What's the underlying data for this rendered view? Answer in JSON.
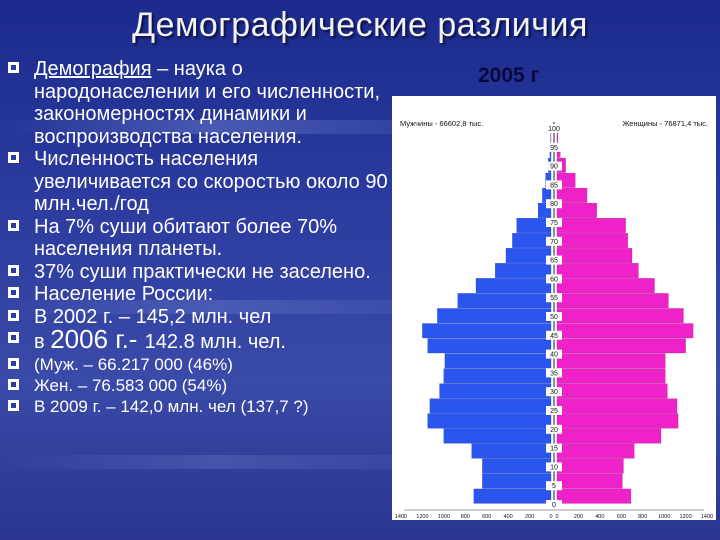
{
  "title": "Демографические различия",
  "bullets": [
    {
      "parts": [
        {
          "text": "Демография",
          "style": "underline"
        },
        {
          "text": " – наука о народонаселении и его численности, закономерностях динамики и воспроизводства населения."
        }
      ]
    },
    {
      "parts": [
        {
          "text": "Численность населения увеличивается со скоростью около 90 млн.чел./год"
        }
      ]
    },
    {
      "parts": [
        {
          "text": "На 7% суши обитают более 70% населения планеты."
        }
      ]
    },
    {
      "parts": [
        {
          "text": "37% суши практически не заселено."
        }
      ]
    },
    {
      "parts": [
        {
          "text": "Население России:"
        }
      ]
    },
    {
      "parts": [
        {
          "text": "В 2002 г. – 145,2 млн. чел"
        }
      ]
    },
    {
      "parts": [
        {
          "text": "в "
        },
        {
          "text": "2006",
          "style": "big"
        },
        {
          "text": " г.- ",
          "style": "big"
        },
        {
          "text": " 142.8 млн. чел."
        }
      ]
    },
    {
      "small": true,
      "parts": [
        {
          "text": "(Муж. – 66.217 000 (46%)"
        }
      ]
    },
    {
      "small": true,
      "parts": [
        {
          "text": "Жен. – 76.583 000 (54%)"
        }
      ]
    },
    {
      "small": true,
      "parts": [
        {
          "text": "В 2009 г. – 142,0 млн. чел (137,7 ?)"
        }
      ]
    }
  ],
  "chart_data": {
    "type": "bar",
    "title": "2005 г",
    "colors": {
      "male": "#2a56ef",
      "female": "#ee22c8",
      "bullet": "#ffffff"
    },
    "male_label": "Мужчины - 66602,8 тыс.",
    "female_label": "Женщины - 76871,4 тыс.",
    "age_ticks": [
      "100",
      "95",
      "90",
      "85",
      "80",
      "75",
      "70",
      "65",
      "60",
      "55",
      "50",
      "45",
      "40",
      "35",
      "30",
      "25",
      "20",
      "15",
      "10",
      "5",
      "0"
    ],
    "x_ticks_left": [
      "1400",
      "1200",
      "1000",
      "800",
      "600",
      "400",
      "200",
      "0"
    ],
    "x_ticks_right": [
      "0",
      "200",
      "400",
      "600",
      "800",
      "1000",
      "1200",
      "1400"
    ],
    "xlim": [
      0,
      1400
    ],
    "ylim": [
      0,
      100
    ],
    "ages": [
      0,
      4,
      8,
      12,
      16,
      20,
      24,
      28,
      32,
      36,
      40,
      44,
      48,
      52,
      56,
      60,
      64,
      68,
      72,
      76,
      80,
      84,
      88,
      92,
      96
    ],
    "male": [
      720,
      640,
      640,
      740,
      1000,
      1150,
      1130,
      1040,
      1000,
      990,
      1150,
      1200,
      1060,
      870,
      700,
      520,
      420,
      360,
      320,
      120,
      80,
      50,
      25,
      10,
      3
    ],
    "female": [
      690,
      610,
      620,
      720,
      970,
      1130,
      1120,
      1030,
      1010,
      1010,
      1200,
      1270,
      1180,
      1040,
      910,
      760,
      700,
      660,
      640,
      370,
      280,
      170,
      80,
      30,
      8
    ]
  }
}
